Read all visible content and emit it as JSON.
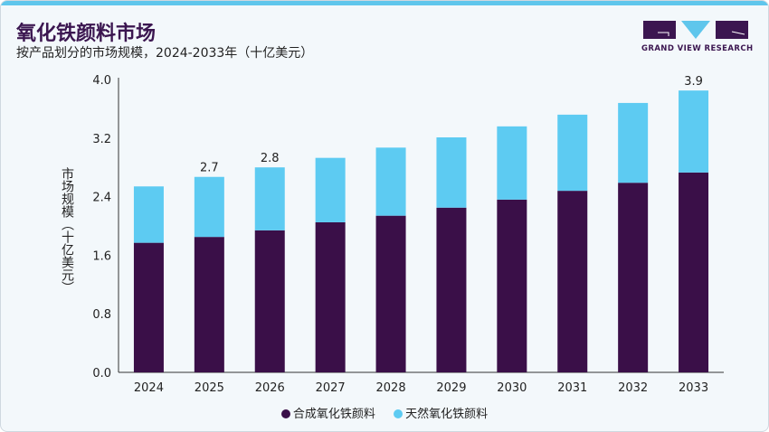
{
  "header": {
    "title": "氧化铁颜料市场",
    "subtitle": "按产品划分的市场规模，2024-2033年（十亿美元）"
  },
  "logo": {
    "text": "GRAND VIEW RESEARCH"
  },
  "colors": {
    "synthetic": "#3a0f48",
    "natural": "#5dcbf2",
    "accent": "#5fc6ec"
  },
  "chart_data": {
    "type": "bar",
    "stacked": true,
    "title": "氧化铁颜料市场",
    "xlabel": "",
    "ylabel": "市场规模（十亿美元）",
    "ylim": [
      0,
      4.0
    ],
    "yticks": [
      "0.0",
      "0.8",
      "1.6",
      "2.4",
      "3.2",
      "4.0"
    ],
    "grid": false,
    "legend_position": "bottom",
    "categories": [
      "2024",
      "2025",
      "2026",
      "2027",
      "2028",
      "2029",
      "2030",
      "2031",
      "2032",
      "2033"
    ],
    "series": [
      {
        "name": "合成氧化铁颜料",
        "values": [
          1.77,
          1.85,
          1.94,
          2.05,
          2.14,
          2.25,
          2.36,
          2.48,
          2.59,
          2.73
        ]
      },
      {
        "name": "天然氧化铁颜料",
        "values": [
          0.77,
          0.82,
          0.86,
          0.88,
          0.93,
          0.96,
          1.0,
          1.04,
          1.09,
          1.12
        ]
      }
    ],
    "data_labels": [
      {
        "category": "2025",
        "text": "2.7"
      },
      {
        "category": "2026",
        "text": "2.8"
      },
      {
        "category": "2033",
        "text": "3.9"
      }
    ]
  }
}
